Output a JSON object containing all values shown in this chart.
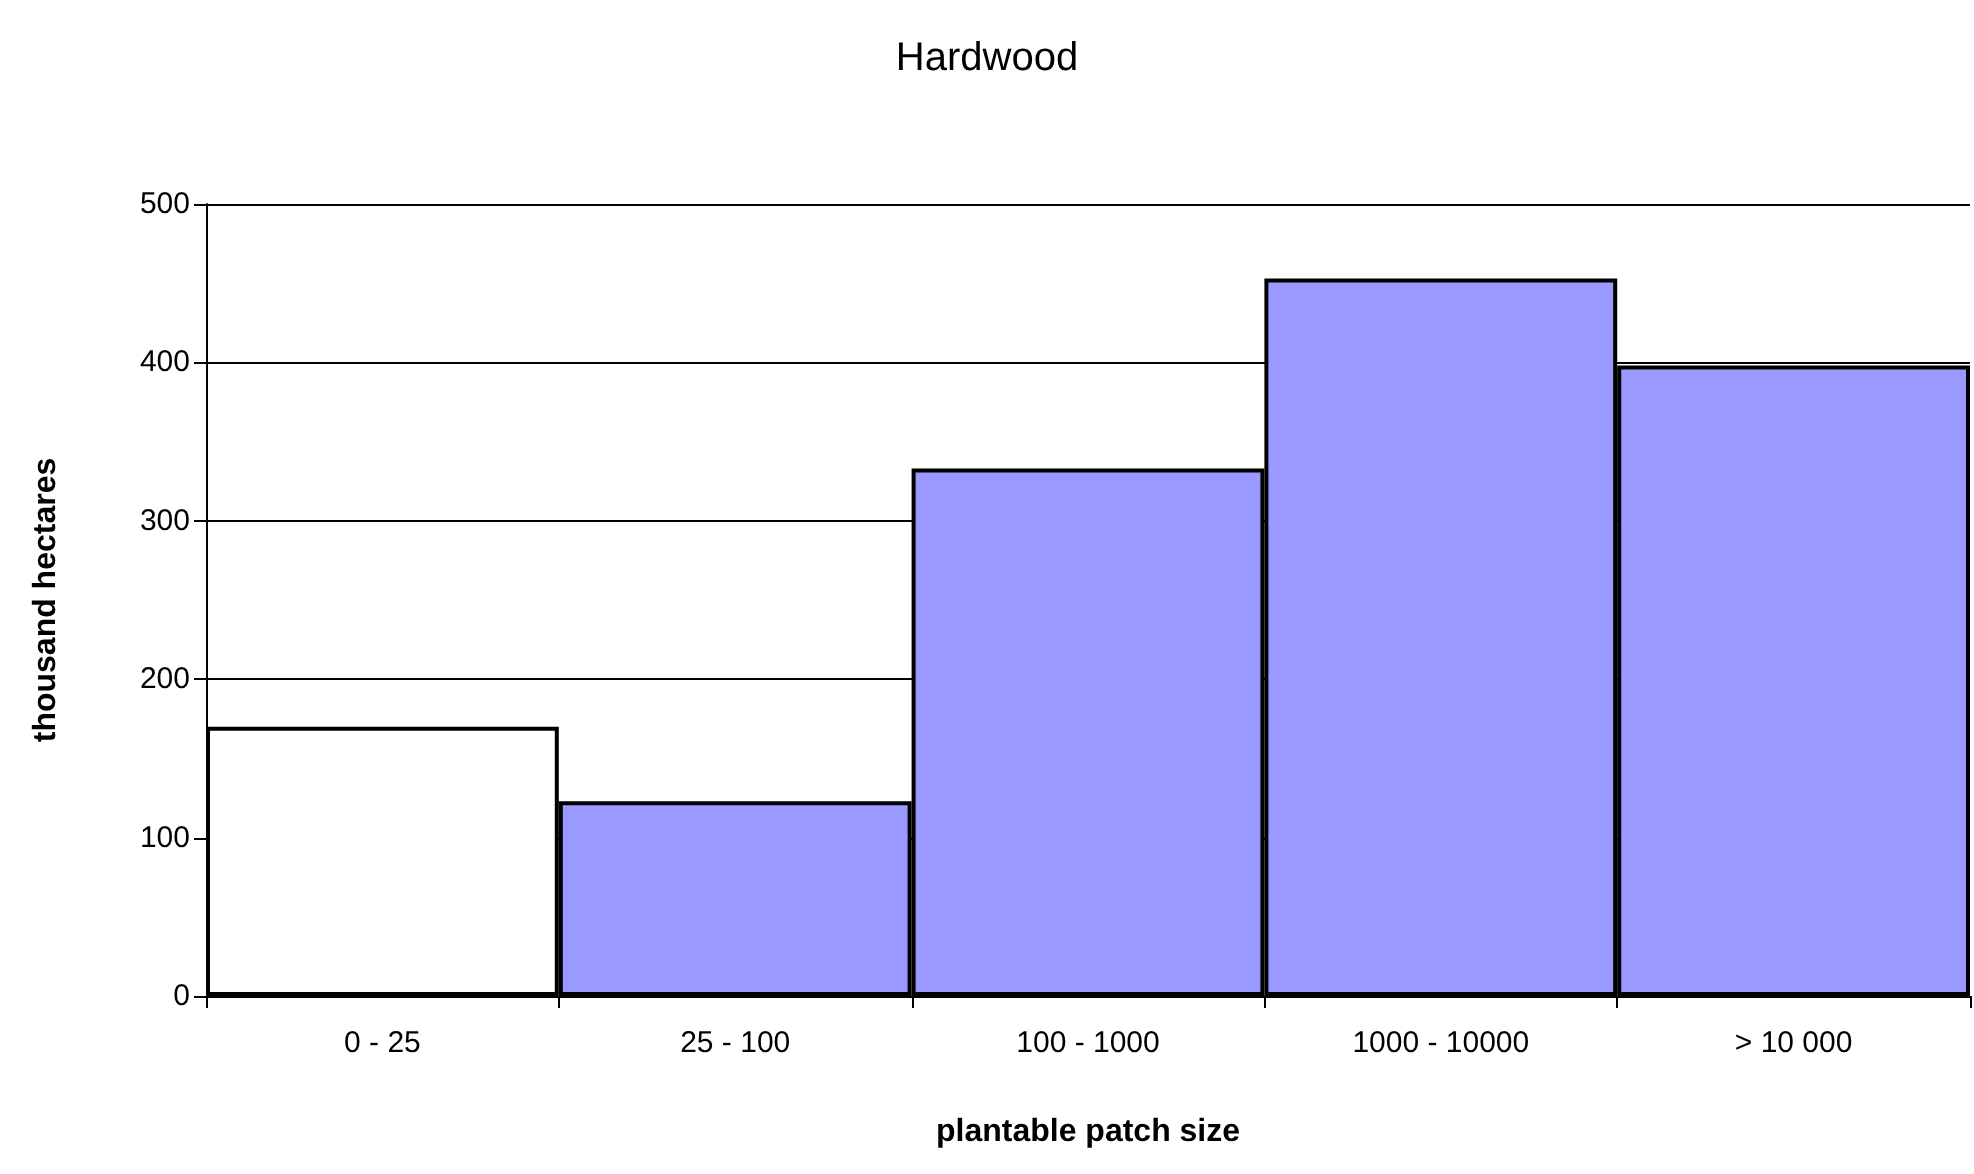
{
  "chart_data": {
    "type": "bar",
    "title": "Hardwood",
    "xlabel": "plantable patch size",
    "ylabel": "thousand hectares",
    "categories": [
      "0 - 25",
      "25 - 100",
      "100 - 1000",
      "1000 - 10000",
      "> 10 000"
    ],
    "values": [
      170,
      123,
      333,
      453,
      398
    ],
    "colors": [
      "#ffffff",
      "#9999ff",
      "#9999ff",
      "#9999ff",
      "#9999ff"
    ],
    "ylim": [
      0,
      500
    ],
    "yticks": [
      0,
      100,
      200,
      300,
      400,
      500
    ],
    "grid": "y"
  }
}
